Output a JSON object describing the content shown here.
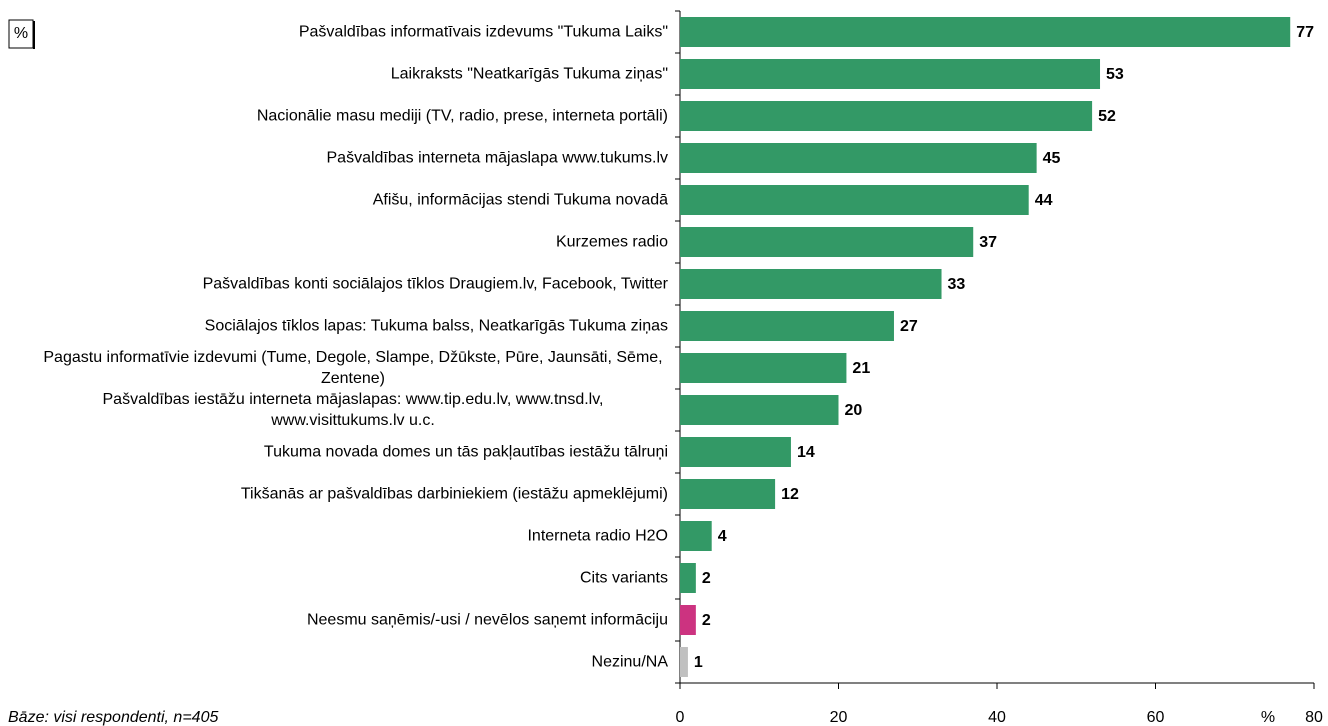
{
  "chart_data": {
    "type": "barh",
    "unit_box": "%",
    "x_axis_label": "%",
    "footnote": "Bāze: visi respondenti, n=405",
    "categories": [
      "Pašvaldības informatīvais izdevums \"Tukuma Laiks\"",
      "Laikraksts \"Neatkarīgās Tukuma ziņas\"",
      "Nacionālie masu mediji (TV, radio, prese, interneta portāli)",
      "Pašvaldības interneta mājaslapa www.tukums.lv",
      "Afišu, informācijas stendi Tukuma novadā",
      "Kurzemes radio",
      "Pašvaldības konti sociālajos tīklos Draugiem.lv, Facebook, Twitter",
      "Sociālajos tīklos lapas: Tukuma balss, Neatkarīgās Tukuma ziņas",
      "Pagastu informatīvie izdevumi (Tume, Degole, Slampe, Džūkste, Pūre, Jaunsāti, Sēme, Zentene)",
      "Pašvaldības iestāžu interneta mājaslapas: www.tip.edu.lv, www.tnsd.lv, www.visittukums.lv u.c.",
      "Tukuma novada domes un tās pakļautības iestāžu tālruņi",
      "Tikšanās ar pašvaldības darbiniekiem (iestāžu apmeklējumi)",
      "Interneta radio H2O",
      "Cits variants",
      "Neesmu saņēmis/-usi / nevēlos saņemt informāciju",
      "Nezinu/NA"
    ],
    "values": [
      77,
      53,
      52,
      45,
      44,
      37,
      33,
      27,
      21,
      20,
      14,
      12,
      4,
      2,
      2,
      1
    ],
    "colors": [
      "#339966",
      "#339966",
      "#339966",
      "#339966",
      "#339966",
      "#339966",
      "#339966",
      "#339966",
      "#339966",
      "#339966",
      "#339966",
      "#339966",
      "#339966",
      "#339966",
      "#cc3380",
      "#c0c0c0"
    ],
    "xlim": [
      0,
      80
    ],
    "xticks": [
      0,
      20,
      40,
      60,
      80
    ]
  }
}
